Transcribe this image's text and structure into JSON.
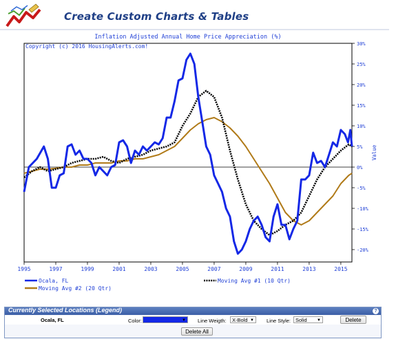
{
  "app": {
    "title": "Create Custom Charts & Tables"
  },
  "chart_data": {
    "type": "line",
    "title": "Inflation Adjusted Annual Home Price Appreciation (%)",
    "subtitle": "Copyright (c) 2016 HousingAlerts.com!",
    "ylabel": "Value",
    "xlim": [
      1995,
      2015.7
    ],
    "ylim": [
      -23,
      30
    ],
    "x_ticks": [
      "1995",
      "1997",
      "1999",
      "2001",
      "2003",
      "2005",
      "2007",
      "2009",
      "2011",
      "2013",
      "2015"
    ],
    "y_ticks": [
      "30%",
      "25%",
      "20%",
      "15%",
      "10%",
      "5%",
      "0%",
      "-5%",
      "-10%",
      "-15%",
      "-20%"
    ],
    "y_tick_values": [
      30,
      25,
      20,
      15,
      10,
      5,
      0,
      -5,
      -10,
      -15,
      -20
    ],
    "zero_line": true,
    "grid": false,
    "series": [
      {
        "name": "Ocala, FL",
        "color": "#1428e6",
        "style": "solid",
        "weight": "X-Bold",
        "points": [
          [
            1995.0,
            -6
          ],
          [
            1995.3,
            0
          ],
          [
            1995.8,
            2
          ],
          [
            1996.25,
            5
          ],
          [
            1996.5,
            2
          ],
          [
            1996.75,
            -5
          ],
          [
            1997.0,
            -5
          ],
          [
            1997.25,
            -2
          ],
          [
            1997.5,
            -1.5
          ],
          [
            1997.75,
            5
          ],
          [
            1998.0,
            5.5
          ],
          [
            1998.25,
            3
          ],
          [
            1998.5,
            4
          ],
          [
            1998.75,
            2
          ],
          [
            1999.0,
            2
          ],
          [
            1999.25,
            1
          ],
          [
            1999.5,
            -2
          ],
          [
            1999.75,
            0
          ],
          [
            2000.0,
            -1
          ],
          [
            2000.25,
            -2
          ],
          [
            2000.5,
            0
          ],
          [
            2000.75,
            0.5
          ],
          [
            2001.0,
            6
          ],
          [
            2001.25,
            6.5
          ],
          [
            2001.5,
            5
          ],
          [
            2001.75,
            1
          ],
          [
            2002.0,
            4
          ],
          [
            2002.25,
            3
          ],
          [
            2002.5,
            5
          ],
          [
            2002.75,
            4
          ],
          [
            2003.0,
            5
          ],
          [
            2003.25,
            6
          ],
          [
            2003.5,
            5.5
          ],
          [
            2003.75,
            7
          ],
          [
            2004.0,
            12
          ],
          [
            2004.25,
            12
          ],
          [
            2004.5,
            16
          ],
          [
            2004.75,
            21
          ],
          [
            2005.0,
            21.5
          ],
          [
            2005.25,
            26
          ],
          [
            2005.5,
            27.5
          ],
          [
            2005.75,
            25
          ],
          [
            2006.0,
            17
          ],
          [
            2006.25,
            11
          ],
          [
            2006.5,
            5
          ],
          [
            2006.75,
            3
          ],
          [
            2007.0,
            -2
          ],
          [
            2007.25,
            -4
          ],
          [
            2007.5,
            -6
          ],
          [
            2007.75,
            -10
          ],
          [
            2008.0,
            -12
          ],
          [
            2008.25,
            -18
          ],
          [
            2008.5,
            -21
          ],
          [
            2008.75,
            -20
          ],
          [
            2009.0,
            -18
          ],
          [
            2009.25,
            -15
          ],
          [
            2009.5,
            -13
          ],
          [
            2009.75,
            -12
          ],
          [
            2010.0,
            -14
          ],
          [
            2010.25,
            -17
          ],
          [
            2010.5,
            -18
          ],
          [
            2010.75,
            -12
          ],
          [
            2011.0,
            -9
          ],
          [
            2011.25,
            -14
          ],
          [
            2011.5,
            -14
          ],
          [
            2011.75,
            -17.5
          ],
          [
            2012.0,
            -15
          ],
          [
            2012.25,
            -13
          ],
          [
            2012.5,
            -3
          ],
          [
            2012.75,
            -3
          ],
          [
            2013.0,
            -2
          ],
          [
            2013.25,
            3.5
          ],
          [
            2013.5,
            1
          ],
          [
            2013.75,
            1.5
          ],
          [
            2014.0,
            0
          ],
          [
            2014.25,
            3
          ],
          [
            2014.5,
            6
          ],
          [
            2014.75,
            5
          ],
          [
            2015.0,
            9
          ],
          [
            2015.25,
            8
          ],
          [
            2015.45,
            6
          ],
          [
            2015.6,
            9
          ],
          [
            2015.7,
            5
          ]
        ]
      },
      {
        "name": "Moving Avg #1 (10 Qtr)",
        "color": "#000000",
        "style": "dotted",
        "weight": "X-Bold",
        "points": [
          [
            1995.0,
            -2.5
          ],
          [
            1995.5,
            -1
          ],
          [
            1996.0,
            0
          ],
          [
            1996.5,
            -1
          ],
          [
            1997.0,
            -0.5
          ],
          [
            1997.5,
            0
          ],
          [
            1998.0,
            1
          ],
          [
            1998.5,
            1.5
          ],
          [
            1999.0,
            2
          ],
          [
            1999.5,
            2
          ],
          [
            2000.0,
            2.5
          ],
          [
            2000.5,
            1.5
          ],
          [
            2001.0,
            1
          ],
          [
            2001.5,
            2
          ],
          [
            2002.0,
            2.5
          ],
          [
            2002.5,
            3
          ],
          [
            2003.0,
            4
          ],
          [
            2003.5,
            4.5
          ],
          [
            2004.0,
            5
          ],
          [
            2004.5,
            6
          ],
          [
            2005.0,
            10
          ],
          [
            2005.5,
            13
          ],
          [
            2006.0,
            17
          ],
          [
            2006.5,
            18.5
          ],
          [
            2007.0,
            17
          ],
          [
            2007.5,
            12
          ],
          [
            2008.0,
            4
          ],
          [
            2008.5,
            -3
          ],
          [
            2009.0,
            -9
          ],
          [
            2009.5,
            -13
          ],
          [
            2010.0,
            -15
          ],
          [
            2010.5,
            -16.5
          ],
          [
            2011.0,
            -15.5
          ],
          [
            2011.5,
            -14
          ],
          [
            2012.0,
            -13
          ],
          [
            2012.5,
            -11
          ],
          [
            2013.0,
            -7
          ],
          [
            2013.5,
            -3
          ],
          [
            2014.0,
            0
          ],
          [
            2014.5,
            2
          ],
          [
            2015.0,
            4
          ],
          [
            2015.5,
            5.5
          ],
          [
            2015.7,
            5
          ]
        ]
      },
      {
        "name": "Moving Avg #2 (20 Qtr)",
        "color": "#b07a18",
        "style": "solid",
        "weight": "X-Bold",
        "points": [
          [
            1995.0,
            -1.5
          ],
          [
            1995.5,
            -1
          ],
          [
            1996.0,
            -0.5
          ],
          [
            1996.5,
            -0.5
          ],
          [
            1997.0,
            -0.3
          ],
          [
            1997.5,
            0
          ],
          [
            1998.0,
            0
          ],
          [
            1998.5,
            0.5
          ],
          [
            1999.0,
            0.5
          ],
          [
            1999.5,
            1
          ],
          [
            2000.0,
            1
          ],
          [
            2000.5,
            1
          ],
          [
            2001.0,
            1.5
          ],
          [
            2001.5,
            1.5
          ],
          [
            2002.0,
            2
          ],
          [
            2002.5,
            2
          ],
          [
            2003.0,
            2.5
          ],
          [
            2003.5,
            3
          ],
          [
            2004.0,
            4
          ],
          [
            2004.5,
            5
          ],
          [
            2005.0,
            7
          ],
          [
            2005.5,
            9
          ],
          [
            2006.0,
            10.5
          ],
          [
            2006.5,
            11.5
          ],
          [
            2007.0,
            12
          ],
          [
            2007.5,
            11
          ],
          [
            2008.0,
            9.5
          ],
          [
            2008.5,
            7.5
          ],
          [
            2009.0,
            5
          ],
          [
            2009.5,
            2
          ],
          [
            2010.0,
            -1
          ],
          [
            2010.5,
            -4
          ],
          [
            2011.0,
            -7.5
          ],
          [
            2011.5,
            -11
          ],
          [
            2012.0,
            -13
          ],
          [
            2012.5,
            -14
          ],
          [
            2013.0,
            -13
          ],
          [
            2013.5,
            -11
          ],
          [
            2014.0,
            -9
          ],
          [
            2014.5,
            -7
          ],
          [
            2015.0,
            -4
          ],
          [
            2015.5,
            -2
          ],
          [
            2015.7,
            -1.5
          ]
        ]
      }
    ]
  },
  "legend_panel": {
    "header": "Currently Selected Locations (Legend)",
    "location": "Ocala, FL",
    "color_label": "Color:",
    "color_value": "#1428e6",
    "weight_label": "Line Weigth:",
    "weight_value": "X-Bold",
    "style_label": "Line Style:",
    "style_value": "Solid",
    "delete_label": "Delete",
    "delete_all_label": "Delete All"
  },
  "icons": {
    "help": "help-icon",
    "logo": "chart-logo-icon"
  }
}
